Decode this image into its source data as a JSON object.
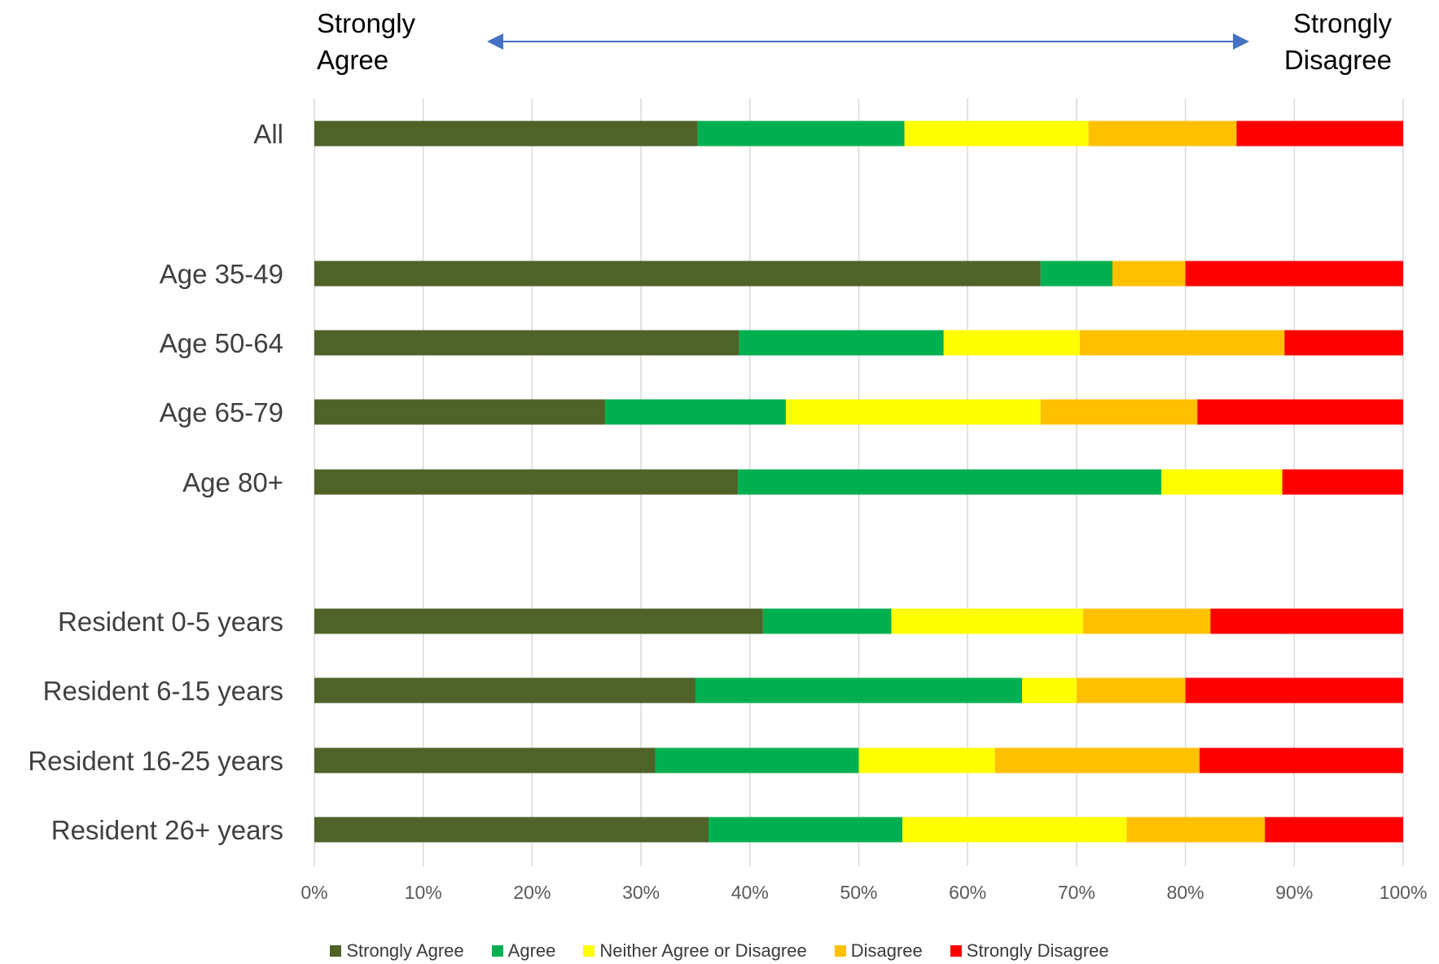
{
  "scale": {
    "left": [
      "Strongly",
      "Agree"
    ],
    "right": [
      "Strongly",
      "Disagree"
    ]
  },
  "chart_data": {
    "type": "bar",
    "orientation": "horizontal",
    "stacked": true,
    "normalized": true,
    "categories": [
      "All",
      "Age 35-49",
      "Age 50-64",
      "Age 65-79",
      "Age 80+",
      "Resident 0-5 years",
      "Resident 6-15 years",
      "Resident 16-25 years",
      "Resident 26+ years"
    ],
    "groups": [
      [
        0
      ],
      [
        1,
        2,
        3,
        4
      ],
      [
        5,
        6,
        7,
        8
      ]
    ],
    "series": [
      {
        "name": "Strongly Agree",
        "color": "#4F6228",
        "values": [
          35.2,
          66.7,
          39.0,
          26.7,
          38.9,
          41.2,
          35.0,
          31.3,
          36.2
        ]
      },
      {
        "name": "Agree",
        "color": "#00B050",
        "values": [
          19.0,
          6.6,
          18.8,
          16.6,
          38.9,
          11.8,
          30.0,
          18.7,
          17.8
        ]
      },
      {
        "name": "Neither Agree or Disagree",
        "color": "#FFFF00",
        "values": [
          16.9,
          0.0,
          12.5,
          23.4,
          11.1,
          17.6,
          5.0,
          12.5,
          20.6
        ]
      },
      {
        "name": "Disagree",
        "color": "#FFC000",
        "values": [
          13.6,
          6.7,
          18.8,
          14.4,
          0.0,
          11.7,
          10.0,
          18.8,
          12.7
        ]
      },
      {
        "name": "Strongly Disagree",
        "color": "#FF0000",
        "values": [
          15.3,
          20.0,
          10.9,
          18.9,
          11.1,
          17.7,
          20.0,
          18.7,
          12.7
        ]
      }
    ],
    "x_ticks": [
      "0%",
      "10%",
      "20%",
      "30%",
      "40%",
      "50%",
      "60%",
      "70%",
      "80%",
      "90%",
      "100%"
    ],
    "xlim": [
      0,
      100
    ],
    "grid": "vertical",
    "legend": "bottom"
  }
}
